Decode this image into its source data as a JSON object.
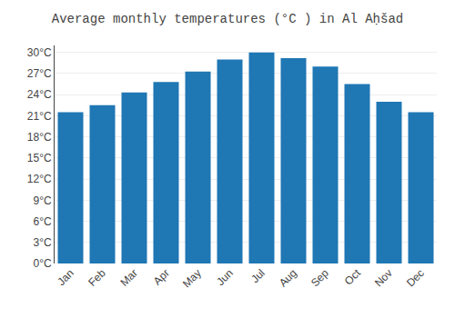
{
  "chart_data": {
    "type": "bar",
    "title": "Average monthly temperatures (°C ) in Al Aḥšad",
    "categories": [
      "Jan",
      "Feb",
      "Mar",
      "Apr",
      "May",
      "Jun",
      "Jul",
      "Aug",
      "Sep",
      "Oct",
      "Nov",
      "Dec"
    ],
    "values": [
      21.5,
      22.5,
      24.3,
      25.8,
      27.3,
      29.0,
      30.0,
      29.2,
      28.0,
      25.5,
      23.0,
      21.5
    ],
    "ylim": [
      0,
      31
    ],
    "yticks": [
      {
        "value": 0,
        "label": "0°C"
      },
      {
        "value": 3,
        "label": "3°C"
      },
      {
        "value": 6,
        "label": "6°C"
      },
      {
        "value": 9,
        "label": "9°C"
      },
      {
        "value": 12,
        "label": "12°C"
      },
      {
        "value": 15,
        "label": "15°C"
      },
      {
        "value": 18,
        "label": "18°C"
      },
      {
        "value": 21,
        "label": "21°C"
      },
      {
        "value": 24,
        "label": "24°C"
      },
      {
        "value": 27,
        "label": "27°C"
      },
      {
        "value": 30,
        "label": "30°C"
      }
    ],
    "grid": true
  }
}
